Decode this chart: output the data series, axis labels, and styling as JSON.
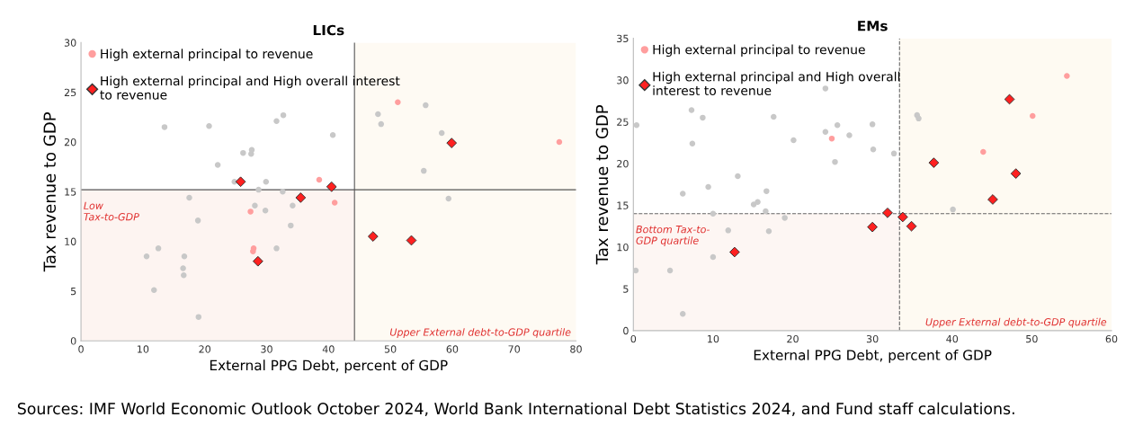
{
  "chart_data": [
    {
      "type": "scatter",
      "title": "LICs",
      "xlabel": "External PPG Debt, percent of GDP",
      "ylabel": "Tax revenue to GDP",
      "xlim": [
        0,
        80
      ],
      "xticks": [
        0,
        10,
        20,
        30,
        40,
        50,
        60,
        70,
        80
      ],
      "ylim": [
        0,
        30
      ],
      "yticks": [
        0,
        5,
        10,
        15,
        20,
        25,
        30
      ],
      "grid": false,
      "legend": "top left",
      "ref_lines": [
        {
          "axis": "x",
          "value": 44.2,
          "color": "#555555",
          "line_style": "solid"
        },
        {
          "axis": "y",
          "value": 15.2,
          "color": "#555555",
          "line_style": "solid"
        }
      ],
      "bands": [
        {
          "axis": "y",
          "from": 0,
          "to": 15.2,
          "label": "Low\nTax-to-GDP",
          "color": "#fdf4f1"
        },
        {
          "axis": "x",
          "from": 44.2,
          "to": 80,
          "label": "Upper External debt-to-GDP quartile",
          "color": "#fefaf3"
        }
      ],
      "series": [
        {
          "color": "#c8c8c8",
          "marker": "circle",
          "x": [
            13.5,
            20.7,
            22.1,
            26.2,
            27.6,
            27.5,
            31.6,
            32.7,
            24.8,
            29.9,
            28.7,
            32.6,
            17.5,
            28.1,
            29.8,
            34.2,
            33.9,
            18.9,
            31.6,
            12.5,
            10.6,
            16.7,
            16.5,
            16.6,
            11.8,
            19.0,
            40.7,
            48.0,
            48.5,
            55.7,
            58.3,
            55.4,
            59.4
          ],
          "values": [
            21.5,
            21.6,
            17.7,
            18.9,
            19.2,
            18.8,
            22.1,
            22.7,
            16.0,
            16.0,
            15.2,
            15.0,
            14.4,
            13.6,
            13.1,
            13.6,
            11.6,
            12.1,
            9.3,
            9.3,
            8.5,
            8.5,
            7.3,
            6.6,
            5.1,
            2.4,
            20.7,
            22.8,
            21.8,
            23.7,
            20.9,
            17.1,
            14.3
          ]
        },
        {
          "name": "High external principal to revenue",
          "color": "#ff9e9e",
          "marker": "circle",
          "x": [
            27.4,
            27.9,
            27.8,
            51.2,
            38.5,
            41.0,
            77.3
          ],
          "values": [
            13.0,
            9.3,
            9.0,
            24.0,
            16.2,
            13.9,
            20.0
          ]
        },
        {
          "name": "High external principal and High overall interest\nto revenue",
          "color": "#ff2020",
          "marker": "diamond",
          "x": [
            25.8,
            35.5,
            28.6,
            40.5,
            47.2,
            53.4,
            59.9
          ],
          "values": [
            16.0,
            14.4,
            8.0,
            15.5,
            10.5,
            10.1,
            19.9
          ]
        }
      ]
    },
    {
      "type": "scatter",
      "title": "EMs",
      "xlabel": "External PPG Debt, percent of GDP",
      "ylabel": "Tax revenue to GDP",
      "xlim": [
        0,
        60
      ],
      "xticks": [
        0,
        10,
        20,
        30,
        40,
        50,
        60
      ],
      "ylim": [
        0,
        35
      ],
      "yticks": [
        0,
        5,
        10,
        15,
        20,
        25,
        30,
        35
      ],
      "grid": false,
      "legend": "top left",
      "ref_lines": [
        {
          "axis": "x",
          "value": 33.4,
          "color": "#666666",
          "line_style": "dashed"
        },
        {
          "axis": "y",
          "value": 14.0,
          "color": "#666666",
          "line_style": "dashed"
        }
      ],
      "bands": [
        {
          "axis": "y",
          "from": 0,
          "to": 14.0,
          "label": "Bottom Tax-to-\nGDP quartile",
          "color": "#fdf6f3"
        },
        {
          "axis": "x",
          "from": 33.4,
          "to": 60,
          "label": "Upper External debt-to-GDP quartile",
          "color": "#fefaf2"
        }
      ],
      "series": [
        {
          "color": "#c8c8c8",
          "marker": "circle",
          "x": [
            0.3,
            0.4,
            4.6,
            6.2,
            6.2,
            7.3,
            7.4,
            8.7,
            9.4,
            10.0,
            10.0,
            11.9,
            13.1,
            15.1,
            15.6,
            16.7,
            16.6,
            17.0,
            17.6,
            19.0,
            20.1,
            24.1,
            24.1,
            25.6,
            25.3,
            27.1,
            30.0,
            30.1,
            32.7,
            35.6,
            35.8,
            40.1
          ],
          "values": [
            7.2,
            24.6,
            7.2,
            2.0,
            16.4,
            26.4,
            22.4,
            25.5,
            17.2,
            14.0,
            8.8,
            12.0,
            18.5,
            15.1,
            15.4,
            16.7,
            14.3,
            11.9,
            25.6,
            13.5,
            22.8,
            29.0,
            23.8,
            24.6,
            20.2,
            23.4,
            24.7,
            21.7,
            21.2,
            25.8,
            25.4,
            14.5
          ]
        },
        {
          "name": "High external principal to revenue",
          "color": "#ff9e9e",
          "marker": "circle",
          "x": [
            24.9,
            43.9,
            50.1,
            54.4
          ],
          "values": [
            23.0,
            21.4,
            25.7,
            30.5
          ]
        },
        {
          "name": "High external principal and High overall\ninterest to revenue",
          "color": "#ff2020",
          "marker": "diamond",
          "x": [
            12.7,
            30.0,
            31.9,
            33.8,
            34.9,
            37.7,
            45.1,
            47.2,
            48.0
          ],
          "values": [
            9.4,
            12.4,
            14.1,
            13.6,
            12.5,
            20.1,
            15.7,
            27.7,
            18.8
          ]
        }
      ],
      "annotations": [
        "Sources: IMF World Economic Outlook October 2024, World Bank International Debt Statistics 2024, and Fund staff calculations."
      ]
    }
  ]
}
